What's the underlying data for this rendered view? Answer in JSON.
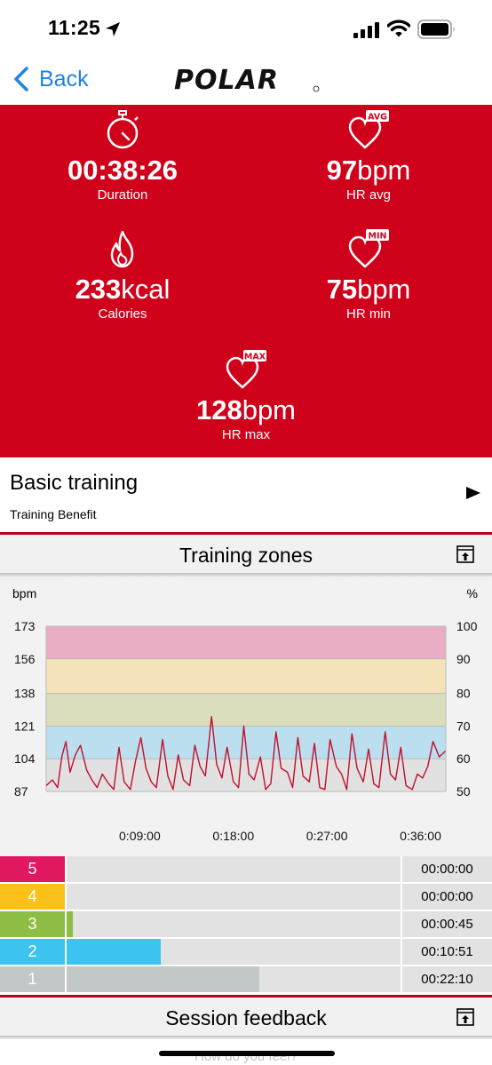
{
  "status_bar": {
    "time": "11:25"
  },
  "nav": {
    "back_label": "Back",
    "logo_text": "POLAR"
  },
  "stats": {
    "duration": {
      "value": "00:38:26",
      "unit": "",
      "label": "Duration"
    },
    "hr_avg": {
      "value": "97",
      "unit": "bpm",
      "label": "HR avg",
      "badge": "AVG"
    },
    "calories": {
      "value": "233",
      "unit": "kcal",
      "label": "Calories"
    },
    "hr_min": {
      "value": "75",
      "unit": "bpm",
      "label": "HR min",
      "badge": "MIN"
    },
    "hr_max": {
      "value": "128",
      "unit": "bpm",
      "label": "HR max",
      "badge": "MAX"
    }
  },
  "basic_training": {
    "title": "Basic training",
    "subtitle": "Training Benefit"
  },
  "training_zones": {
    "title": "Training zones"
  },
  "session_feedback": {
    "title": "Session feedback",
    "faded_prompt": "How do you feel?"
  },
  "colors": {
    "brand_red": "#d0021b",
    "zone5": "#e0185f",
    "zone4": "#fcc01a",
    "zone3": "#8dbd45",
    "zone2": "#3dc3ef",
    "zone1": "#c2c7c7",
    "hr_line": "#c20f2b",
    "link_blue": "#1e82e6"
  },
  "chart_data": {
    "type": "line",
    "xlabel": "",
    "ylabel": "bpm",
    "y2label": "%",
    "y_ticks": [
      87,
      104,
      121,
      138,
      156,
      173
    ],
    "y2_ticks": [
      50,
      60,
      70,
      80,
      90,
      100
    ],
    "x_tick_labels": [
      "0:09:00",
      "0:18:00",
      "0:27:00",
      "0:36:00"
    ],
    "x_ticks_min": [
      9,
      18,
      27,
      36
    ],
    "xlim_min": [
      0,
      38.43
    ],
    "ylim": [
      87,
      173
    ],
    "zone_bands": [
      {
        "zone": 1,
        "from": 87,
        "to": 104,
        "color": "#e1e1e1"
      },
      {
        "zone": 2,
        "from": 104,
        "to": 121,
        "color": "#bcdff0"
      },
      {
        "zone": 3,
        "from": 121,
        "to": 138,
        "color": "#dadebd"
      },
      {
        "zone": 4,
        "from": 138,
        "to": 156,
        "color": "#f4e3b9"
      },
      {
        "zone": 5,
        "from": 156,
        "to": 173,
        "color": "#e9aec6"
      }
    ],
    "series": [
      {
        "name": "",
        "x": [
          0,
          0.6,
          1.1,
          1.5,
          1.9,
          2.3,
          2.8,
          3.3,
          3.9,
          4.4,
          4.9,
          5.4,
          6.0,
          6.5,
          7.0,
          7.5,
          8.1,
          8.6,
          9.1,
          9.6,
          10.1,
          10.6,
          11.2,
          11.7,
          12.2,
          12.7,
          13.2,
          13.8,
          14.3,
          14.8,
          15.3,
          15.9,
          16.4,
          16.9,
          17.4,
          18.0,
          18.5,
          19.0,
          19.5,
          20.0,
          20.6,
          21.1,
          21.6,
          22.1,
          22.6,
          23.2,
          23.7,
          24.2,
          24.7,
          25.3,
          25.8,
          26.3,
          26.8,
          27.3,
          27.9,
          28.4,
          28.9,
          29.4,
          29.9,
          30.5,
          31.0,
          31.5,
          32.0,
          32.6,
          33.1,
          33.6,
          34.1,
          34.6,
          35.2,
          35.7,
          36.2,
          36.7,
          37.2,
          37.8,
          38.4
        ],
        "values": [
          90,
          93,
          89,
          105,
          113,
          97,
          106,
          111,
          98,
          93,
          89,
          96,
          91,
          88,
          110,
          92,
          88,
          103,
          115,
          99,
          92,
          89,
          114,
          95,
          88,
          106,
          93,
          90,
          111,
          100,
          95,
          126,
          101,
          94,
          110,
          92,
          89,
          121,
          96,
          93,
          105,
          88,
          91,
          118,
          99,
          97,
          89,
          115,
          95,
          92,
          112,
          89,
          88,
          114,
          100,
          96,
          88,
          117,
          99,
          92,
          109,
          91,
          89,
          118,
          96,
          93,
          110,
          90,
          88,
          96,
          94,
          100,
          113,
          105,
          108
        ]
      }
    ]
  },
  "zones": [
    {
      "num": "5",
      "time": "00:00:00",
      "fraction": 0.0
    },
    {
      "num": "4",
      "time": "00:00:00",
      "fraction": 0.0
    },
    {
      "num": "3",
      "time": "00:00:45",
      "fraction": 0.0195
    },
    {
      "num": "2",
      "time": "00:10:51",
      "fraction": 0.2823
    },
    {
      "num": "1",
      "time": "00:22:10",
      "fraction": 0.5768
    }
  ]
}
